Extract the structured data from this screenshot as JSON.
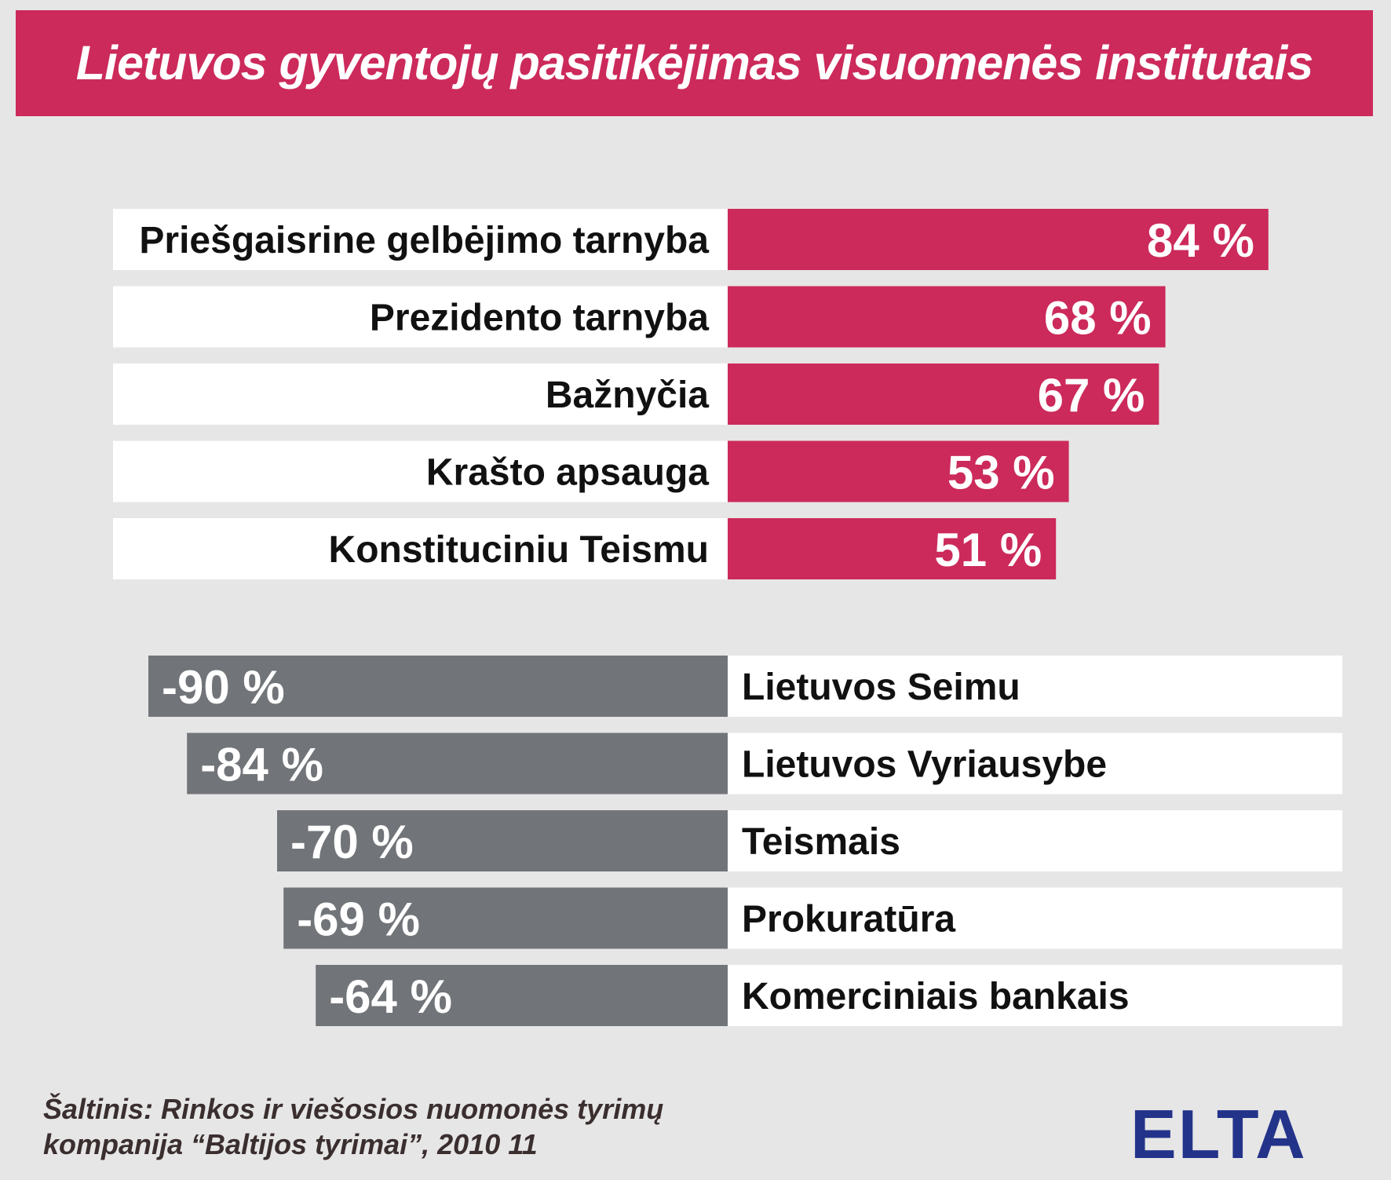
{
  "title": "Lietuvos gyventojų pasitikėjimas visuomenės institutais",
  "colors": {
    "positive": "#cc2a5b",
    "negative": "#717478",
    "label_bg": "#ffffff",
    "background": "#e6e6e6",
    "logo": "#24338a"
  },
  "chart_data": {
    "type": "bar",
    "orientation": "horizontal",
    "unit": "%",
    "groups": [
      {
        "name": "",
        "categories": [
          "Priešgaisrine gelbėjimo tarnyba",
          "Prezidento tarnyba",
          "Bažnyčia",
          "Krašto apsauga",
          "Konstituciniu Teismu"
        ],
        "values": [
          84,
          68,
          67,
          53,
          51
        ],
        "value_labels": [
          "84 %",
          "68 %",
          "67 %",
          "53 %",
          "51 %"
        ]
      },
      {
        "name": "",
        "categories": [
          "Lietuvos Seimu",
          "Lietuvos Vyriausybe",
          "Teismais",
          "Prokuratūra",
          "Komerciniais bankais"
        ],
        "values": [
          -90,
          -84,
          -70,
          -69,
          -64
        ],
        "value_labels": [
          "-90 %",
          "-84 %",
          "-70 %",
          "-69 %",
          "-64 %"
        ]
      }
    ]
  },
  "source": {
    "line1": "Šaltinis: Rinkos ir viešosios nuomonės tyrimų",
    "line2": "kompanija “Baltijos tyrimai”, 2010 11"
  },
  "logo": "ELTA"
}
